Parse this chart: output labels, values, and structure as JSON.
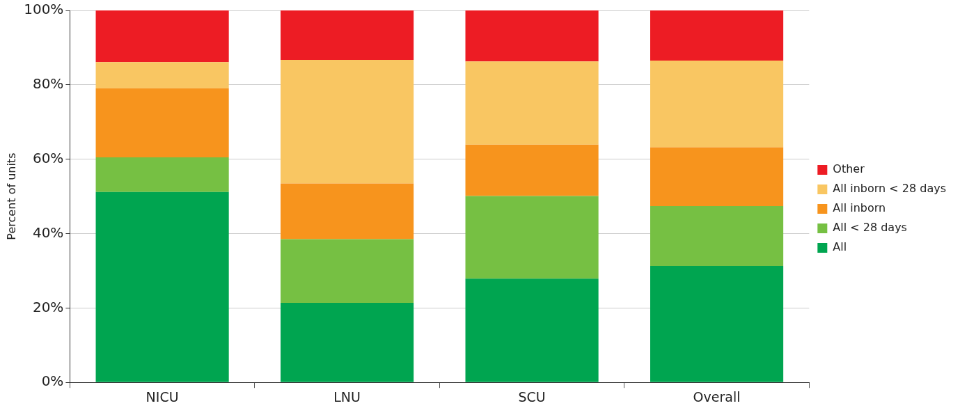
{
  "chart_data": {
    "type": "bar",
    "stacked": true,
    "ylabel": "Percent of units",
    "categories": [
      "NICU",
      "LNU",
      "SCU",
      "Overall"
    ],
    "series": [
      {
        "name": "All",
        "color": "#00a550",
        "values": [
          51.2,
          21.4,
          27.9,
          31.3
        ]
      },
      {
        "name": "All < 28 days",
        "color": "#76c043",
        "values": [
          9.3,
          17.1,
          22.2,
          16.1
        ]
      },
      {
        "name": "All inborn",
        "color": "#f7941d",
        "values": [
          18.6,
          15.0,
          13.8,
          15.8
        ]
      },
      {
        "name": "All inborn < 28 days",
        "color": "#f9c662",
        "values": [
          7.0,
          33.2,
          22.4,
          23.3
        ]
      },
      {
        "name": "Other",
        "color": "#ed1c24",
        "values": [
          13.9,
          13.3,
          13.7,
          13.5
        ]
      }
    ],
    "ylim": [
      0,
      100
    ],
    "yticks": [
      {
        "value": 0,
        "label": "0%"
      },
      {
        "value": 20,
        "label": "20%"
      },
      {
        "value": 40,
        "label": "40%"
      },
      {
        "value": 60,
        "label": "60%"
      },
      {
        "value": 80,
        "label": "80%"
      },
      {
        "value": 100,
        "label": "100%"
      }
    ],
    "grid": "y",
    "legend": "right"
  }
}
